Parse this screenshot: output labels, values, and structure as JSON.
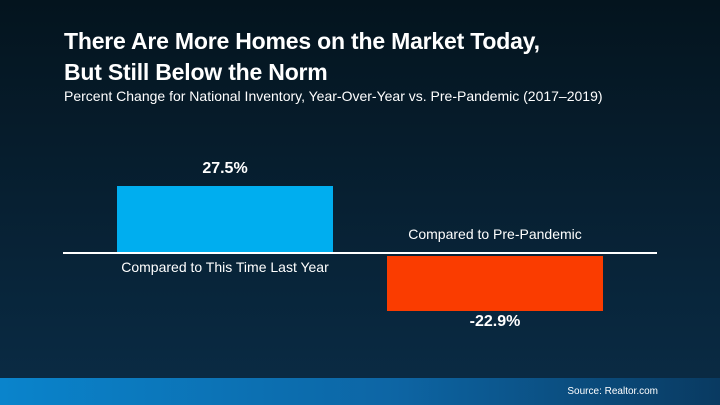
{
  "header": {
    "title_line1": "There Are More Homes on the Market Today,",
    "title_line2": "But Still Below the Norm",
    "subtitle": "Percent Change for National Inventory, Year-Over-Year vs. Pre-Pandemic (2017–2019)"
  },
  "footer": {
    "source": "Source: Realtor.com"
  },
  "colors": {
    "background_top": "#04141e",
    "background_bottom": "#0a2c46",
    "footer_gradient_left": "#0a84cc",
    "footer_gradient_mid": "#0d65a4",
    "footer_gradient_right": "#093a61",
    "axis_line": "#ffffff",
    "positive_bar": "#00AEEF",
    "negative_bar": "#FA3C00",
    "text": "#ffffff"
  },
  "chart_data": {
    "type": "bar",
    "title": "There Are More Homes on the Market Today, But Still Below the Norm",
    "subtitle": "Percent Change for National Inventory, Year-Over-Year vs. Pre-Pandemic (2017–2019)",
    "categories": [
      "Compared to This Time Last Year",
      "Compared to Pre-Pandemic"
    ],
    "values": [
      27.5,
      -22.9
    ],
    "value_labels": [
      "27.5%",
      "-22.9%"
    ],
    "unit": "percent change",
    "baseline": 0,
    "ylim": [
      -30,
      35
    ],
    "grid": false,
    "legend": "none",
    "bar_colors": [
      "#00AEEF",
      "#FA3C00"
    ],
    "source": "Source: Realtor.com"
  }
}
